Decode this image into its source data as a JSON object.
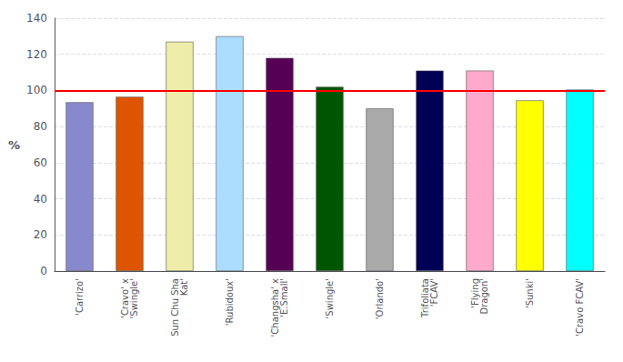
{
  "chart_data": {
    "type": "bar",
    "ylabel": "%",
    "categories": [
      "'Carrizo'",
      "'Cravo' x\n'Swingle'",
      "Sun Chu Sha\nKat'",
      "'Rubidoux'",
      "'Changsha' x\n'E.Small'",
      "'Swingle'",
      "'Orlando'",
      "Trifoliata\n'FCAV'",
      "'Flying\nDragon'",
      "'Sunki'",
      "'Cravo FCAV'"
    ],
    "values": [
      93.5,
      96.5,
      127.0,
      130.0,
      118.0,
      102.0,
      90.0,
      111.0,
      111.0,
      94.5,
      100.5
    ],
    "colors": [
      "#8888CC",
      "#DD5500",
      "#EEEEAA",
      "#AADDFF",
      "#550055",
      "#005500",
      "#AAAAAA",
      "#000055",
      "#FFAACC",
      "#FFFF00",
      "#00FFFF"
    ],
    "reference_line": {
      "value": 100,
      "color": "#FF0000"
    },
    "ylim": [
      0,
      140
    ],
    "yticks": [
      0,
      20,
      40,
      60,
      80,
      100,
      120,
      140
    ],
    "grid": true
  }
}
